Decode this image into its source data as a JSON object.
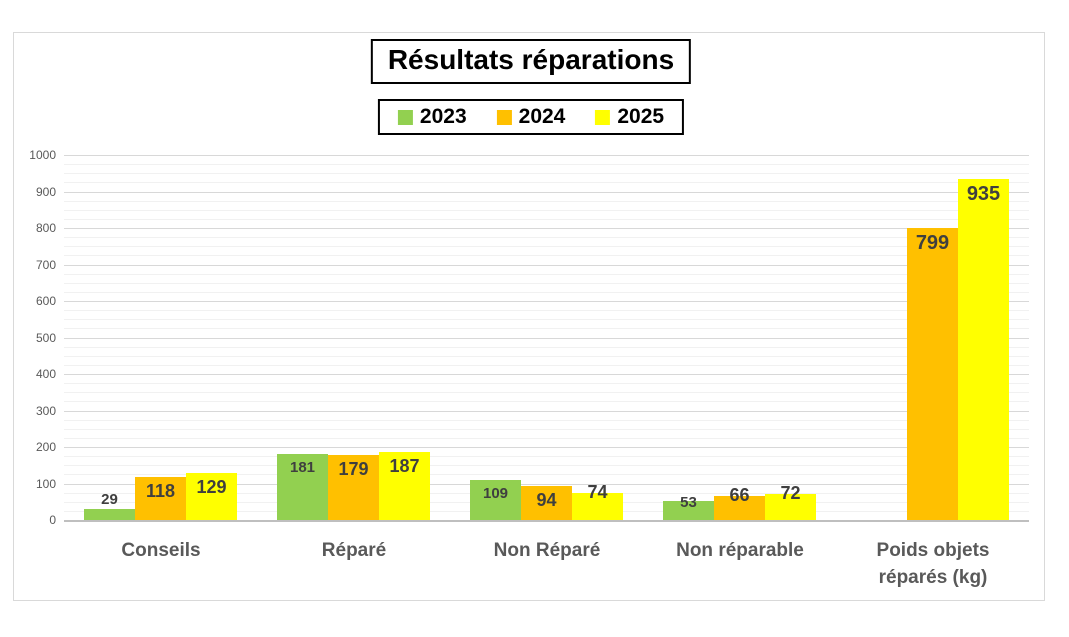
{
  "chart_data": {
    "type": "bar",
    "title": "Résultats réparations",
    "categories": [
      "Conseils",
      "Réparé",
      "Non Réparé",
      "Non réparable",
      "Poids objets réparés (kg)"
    ],
    "series": [
      {
        "name": "2023",
        "color": "#92D050",
        "values": [
          29,
          181,
          109,
          53,
          null
        ]
      },
      {
        "name": "2024",
        "color": "#FFC000",
        "values": [
          118,
          179,
          94,
          66,
          799
        ]
      },
      {
        "name": "2025",
        "color": "#FFFF00",
        "values": [
          129,
          187,
          74,
          72,
          935
        ]
      }
    ],
    "ylim": [
      0,
      1000
    ],
    "y_ticks": [
      0,
      100,
      200,
      300,
      400,
      500,
      600,
      700,
      800,
      900,
      1000
    ],
    "y_minor_step": 25,
    "grid": true,
    "legend_position": "top",
    "data_labels": true,
    "xlabel": "",
    "ylabel": ""
  },
  "colors": {
    "grid_major": "#d8d8d8",
    "grid_minor": "#f1f1f1",
    "axis_line": "#bfbfbf",
    "tick_text": "#595959",
    "category_text": "#595959",
    "data_label_text": "#3f3f3f",
    "frame_border": "#d9d9d9",
    "series_2023": "#92D050",
    "series_2024": "#FFC000",
    "series_2025": "#FFFF00"
  }
}
